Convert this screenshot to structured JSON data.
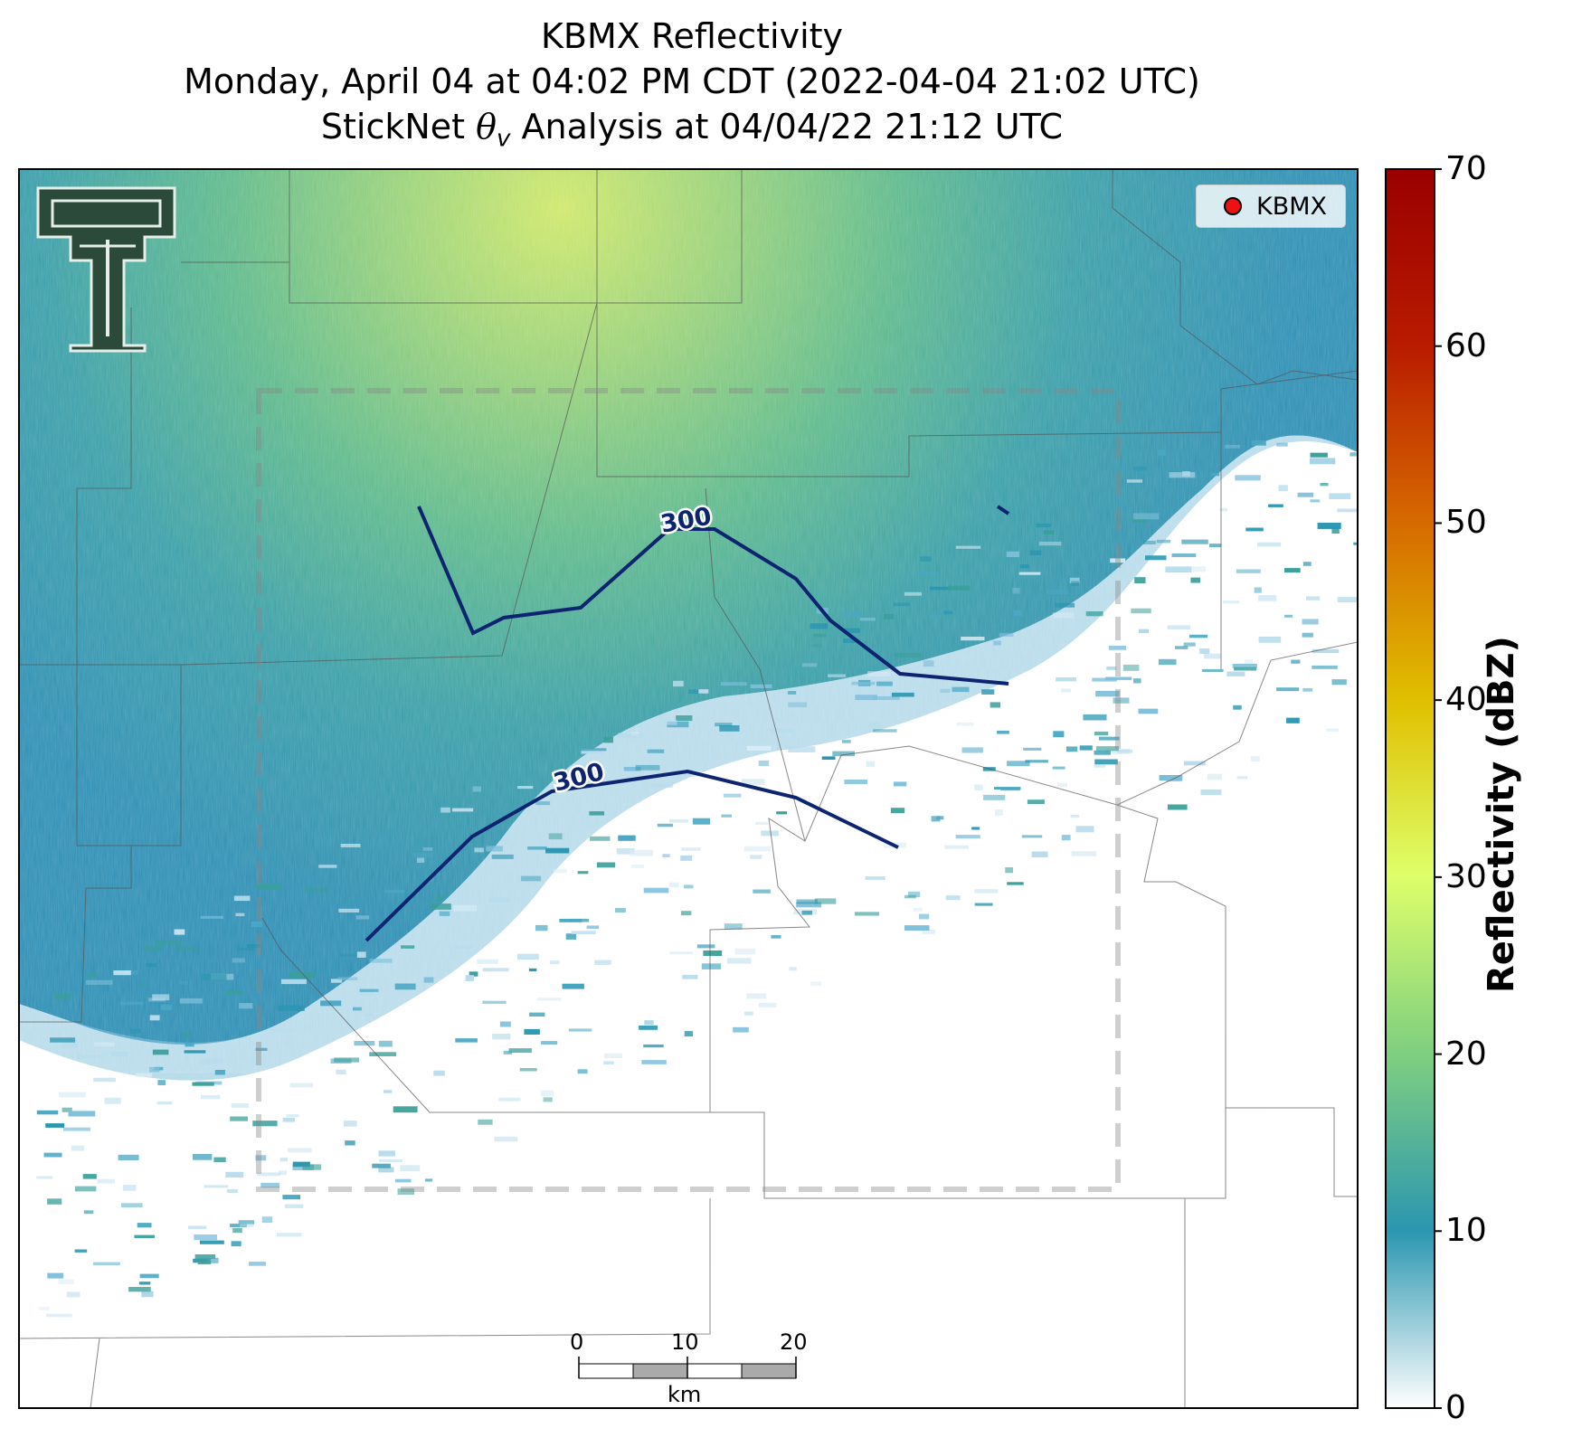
{
  "title": {
    "line1": "KBMX Reflectivity",
    "line2": "Monday, April 04 at 04:02 PM CDT (2022-04-04 21:02 UTC)",
    "line3_prefix": "StickNet ",
    "line3_symbol": "θ",
    "line3_subscript": "v",
    "line3_suffix": " Analysis at 04/04/22 21:12 UTC"
  },
  "legend": {
    "label": "KBMX",
    "marker_color": "#ee1111"
  },
  "colorbar": {
    "label": "Reflectivity (dBZ)",
    "ticks": [
      "0",
      "10",
      "20",
      "30",
      "40",
      "50",
      "60",
      "70"
    ],
    "range": [
      0,
      70
    ],
    "colors": [
      "#ffffff",
      "#2b96b0",
      "#7fcf80",
      "#deff6a",
      "#e0c000",
      "#d66a00",
      "#b81a00",
      "#9a0000"
    ]
  },
  "contours": [
    {
      "label": "300",
      "color": "#0d2470"
    },
    {
      "label": "300",
      "color": "#0d2470"
    }
  ],
  "scale_bar": {
    "ticks": [
      "0",
      "10",
      "20"
    ],
    "unit": "km"
  },
  "logo": {
    "name": "texas-tech-double-t-logo",
    "color": "#2b4a3a"
  }
}
